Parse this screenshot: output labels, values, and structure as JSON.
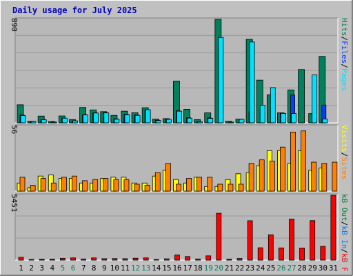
{
  "title": "Daily usage for July 2025",
  "colors": {
    "background": "#c0c0c0",
    "panel": "#b8b8b8",
    "title": "#0000c0",
    "hits": "#00805c",
    "files": "#0040ff",
    "pages": "#00e0ff",
    "visits": "#ffff00",
    "sites": "#ff8000",
    "kbin": "#0080ff",
    "kbout": "#008040",
    "kbf": "#ff0000",
    "weekend_label": "#00805c",
    "day_label": "#000000"
  },
  "chart_data": [
    {
      "type": "bar",
      "panel": "hits-files-pages",
      "ymax_label": "890",
      "ylim": [
        0,
        890
      ],
      "legend": {
        "pages": "Pages",
        "files": "Files",
        "hits": "Hits",
        "sep1": "/",
        "sep2": "/"
      },
      "categories": [
        "1",
        "2",
        "3",
        "4",
        "5",
        "6",
        "7",
        "8",
        "9",
        "10",
        "11",
        "12",
        "13",
        "14",
        "15",
        "16",
        "17",
        "18",
        "19",
        "20",
        "21",
        "22",
        "23",
        "24",
        "25",
        "26",
        "27",
        "28",
        "29",
        "30",
        "31"
      ],
      "series": [
        {
          "name": "Hits",
          "values": [
            155,
            13,
            58,
            11,
            59,
            28,
            132,
            111,
            96,
            64,
            100,
            87,
            130,
            32,
            36,
            359,
            116,
            28,
            86,
            890,
            13,
            32,
            718,
            367,
            241,
            86,
            283,
            458,
            79,
            571,
            0
          ]
        },
        {
          "name": "Files",
          "values": [
            68,
            11,
            27,
            7,
            40,
            17,
            70,
            87,
            87,
            34,
            74,
            67,
            111,
            23,
            32,
            104,
            44,
            8,
            42,
            0,
            0,
            0,
            95,
            0,
            0,
            84,
            239,
            0,
            0,
            153,
            0
          ]
        },
        {
          "name": "Pages",
          "values": [
            62,
            11,
            26,
            6,
            40,
            17,
            68,
            84,
            85,
            31,
            70,
            64,
            113,
            20,
            30,
            100,
            40,
            8,
            38,
            734,
            6,
            30,
            695,
            152,
            303,
            81,
            80,
            0,
            412,
            33,
            0
          ]
        }
      ]
    },
    {
      "type": "bar",
      "panel": "visits-sites",
      "ymax_label": "56",
      "ylim": [
        0,
        56
      ],
      "legend": {
        "sites": "Sites",
        "visits": "Visits",
        "sep1": "/"
      },
      "categories": [
        "1",
        "2",
        "3",
        "4",
        "5",
        "6",
        "7",
        "8",
        "9",
        "10",
        "11",
        "12",
        "13",
        "14",
        "15",
        "16",
        "17",
        "18",
        "19",
        "20",
        "21",
        "22",
        "23",
        "24",
        "25",
        "26",
        "27",
        "28",
        "29",
        "30",
        "31"
      ],
      "series": [
        {
          "name": "Visits",
          "values": [
            7,
            3,
            13,
            14,
            11,
            11,
            7,
            7,
            11,
            12,
            12,
            7,
            7,
            13,
            18,
            10,
            7,
            12,
            4,
            4,
            10,
            15,
            16,
            22,
            35,
            35,
            24,
            35,
            18,
            20,
            0
          ]
        },
        {
          "name": "Sites",
          "values": [
            12,
            5,
            11,
            7,
            12,
            13,
            9,
            10,
            11,
            10,
            10,
            6,
            5,
            16,
            24,
            6,
            11,
            12,
            12,
            6,
            6,
            6,
            24,
            27,
            26,
            38,
            51,
            52,
            25,
            24,
            25
          ]
        }
      ]
    },
    {
      "type": "bar",
      "panel": "kbf-kbin-kbout",
      "ymax_label": "5451",
      "ylim": [
        0,
        5451
      ],
      "legend": {
        "kbf": "kB F",
        "kbin": "kB In",
        "kbout": "kB Out",
        "sep1": "/",
        "sep2": "/"
      },
      "categories": [
        "1",
        "2",
        "3",
        "4",
        "5",
        "6",
        "7",
        "8",
        "9",
        "10",
        "11",
        "12",
        "13",
        "14",
        "15",
        "16",
        "17",
        "18",
        "19",
        "20",
        "21",
        "22",
        "23",
        "24",
        "25",
        "26",
        "27",
        "28",
        "29",
        "30",
        "31"
      ],
      "series": [
        {
          "name": "kB F",
          "values": [
            240,
            60,
            90,
            90,
            150,
            190,
            100,
            190,
            120,
            130,
            120,
            160,
            190,
            60,
            110,
            440,
            300,
            100,
            360,
            3940,
            90,
            140,
            3310,
            1040,
            2130,
            1030,
            3450,
            1020,
            3320,
            1160,
            5451
          ]
        }
      ]
    }
  ],
  "x_axis": {
    "labels": [
      "1",
      "2",
      "3",
      "4",
      "5",
      "6",
      "7",
      "8",
      "9",
      "10",
      "11",
      "12",
      "13",
      "14",
      "15",
      "16",
      "17",
      "18",
      "19",
      "20",
      "21",
      "22",
      "23",
      "24",
      "25",
      "26",
      "27",
      "28",
      "29",
      "30",
      "31"
    ],
    "weekend_days": [
      "5",
      "6",
      "12",
      "13",
      "19",
      "20",
      "26",
      "27"
    ]
  }
}
